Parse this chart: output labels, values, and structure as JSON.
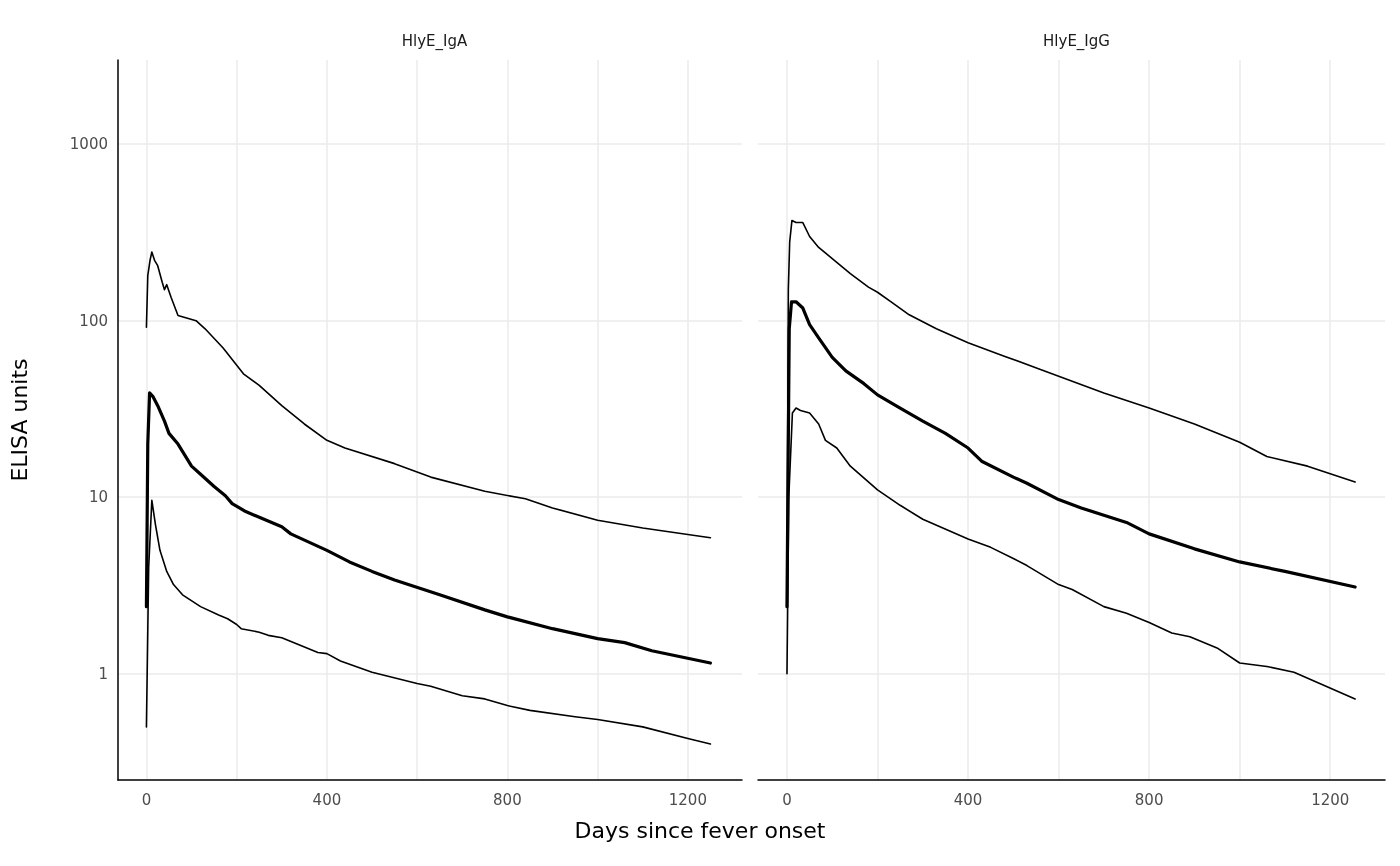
{
  "chart_data": [
    {
      "type": "line",
      "title": "HlyE_IgA",
      "xlabel": "Days since fever onset",
      "ylabel": "ELISA units",
      "log": "y",
      "xlim": [
        -63,
        1320
      ],
      "ylim": [
        0.25,
        3000
      ],
      "xticks": [
        0,
        {
          "value": 200,
          "label": null
        },
        400,
        {
          "value": 600,
          "label": null
        },
        800,
        {
          "value": 1000,
          "label": null
        },
        1200
      ],
      "yticks": [
        1,
        10,
        100,
        1000
      ],
      "grid": true,
      "marker": "none",
      "line_style": "solid",
      "series": [
        {
          "color": "#000000",
          "x": [
            0,
            3,
            8,
            12,
            18,
            25,
            35,
            40,
            45,
            55,
            70,
            110,
            130,
            170,
            215,
            250,
            300,
            350,
            400,
            440,
            550,
            630,
            750,
            840,
            900,
            1000,
            1100,
            1250
          ],
          "values": [
            92,
            180,
            220,
            245,
            220,
            205,
            165,
            150,
            160,
            135,
            107,
            100,
            90,
            70,
            50,
            43,
            33,
            26,
            21,
            19,
            15.5,
            13,
            10.8,
            9.8,
            8.7,
            7.4,
            6.7,
            5.9
          ]
        },
        {
          "color": "#000000",
          "x": [
            0,
            3,
            7,
            15,
            25,
            40,
            50,
            70,
            100,
            120,
            150,
            175,
            190,
            220,
            250,
            300,
            320,
            400,
            450,
            500,
            550,
            650,
            750,
            800,
            900,
            1000,
            1060,
            1120,
            1250
          ],
          "values": [
            2.4,
            20,
            39,
            37,
            33,
            27,
            23,
            20,
            15,
            13.5,
            11.5,
            10.2,
            9.2,
            8.3,
            7.7,
            6.8,
            6.2,
            5,
            4.3,
            3.8,
            3.4,
            2.8,
            2.3,
            2.1,
            1.8,
            1.58,
            1.5,
            1.35,
            1.15
          ]
        },
        {
          "color": "#000000",
          "x": [
            0,
            5,
            12,
            20,
            30,
            45,
            60,
            80,
            120,
            160,
            180,
            200,
            210,
            250,
            270,
            300,
            380,
            400,
            430,
            500,
            600,
            630,
            700,
            750,
            800,
            850,
            950,
            1000,
            1100,
            1200,
            1250
          ],
          "values": [
            0.5,
            4,
            9.6,
            7,
            5,
            3.8,
            3.2,
            2.8,
            2.4,
            2.15,
            2.05,
            1.9,
            1.8,
            1.72,
            1.65,
            1.6,
            1.32,
            1.3,
            1.18,
            1.02,
            0.88,
            0.85,
            0.75,
            0.72,
            0.66,
            0.62,
            0.57,
            0.55,
            0.5,
            0.43,
            0.4
          ]
        }
      ]
    },
    {
      "type": "line",
      "title": "HlyE_IgG",
      "log": "y",
      "tick_labels": "x",
      "xlim": [
        -64,
        1321
      ],
      "ylim": [
        0.25,
        3000
      ],
      "xticks": [
        0,
        {
          "value": 200,
          "label": null
        },
        400,
        {
          "value": 600,
          "label": null
        },
        800,
        {
          "value": 1000,
          "label": null
        },
        1200
      ],
      "yticks": [
        1,
        10,
        100,
        1000
      ],
      "grid": true,
      "marker": "none",
      "line_style": "solid",
      "series": [
        {
          "color": "#000000",
          "x": [
            0,
            3,
            6,
            11,
            20,
            35,
            50,
            70,
            100,
            140,
            180,
            200,
            230,
            270,
            330,
            400,
            480,
            560,
            700,
            800,
            900,
            1000,
            1060,
            1150,
            1255
          ],
          "values": [
            2.4,
            150,
            280,
            370,
            360,
            360,
            300,
            260,
            225,
            185,
            155,
            145,
            128,
            108,
            90,
            75,
            63,
            53,
            39,
            32,
            26,
            20.5,
            17,
            15,
            12.2
          ]
        },
        {
          "color": "#000000",
          "x": [
            0,
            5,
            10,
            20,
            35,
            50,
            70,
            100,
            130,
            170,
            200,
            250,
            300,
            350,
            400,
            430,
            500,
            530,
            600,
            650,
            700,
            750,
            800,
            900,
            1000,
            1100,
            1255
          ],
          "values": [
            2.4,
            90,
            128,
            128,
            118,
            95,
            80,
            62,
            52,
            44,
            38,
            32,
            27,
            23,
            19,
            16,
            13,
            12,
            9.7,
            8.7,
            7.9,
            7.2,
            6.2,
            5.1,
            4.3,
            3.8,
            3.1
          ]
        },
        {
          "color": "#000000",
          "x": [
            0,
            4,
            12,
            20,
            30,
            50,
            70,
            85,
            110,
            140,
            200,
            250,
            300,
            400,
            450,
            500,
            530,
            600,
            630,
            700,
            750,
            800,
            850,
            890,
            950,
            1000,
            1060,
            1120,
            1255
          ],
          "values": [
            1.0,
            10,
            30,
            32,
            31,
            30,
            26,
            21,
            19,
            15,
            11,
            9,
            7.5,
            5.8,
            5.2,
            4.5,
            4.1,
            3.2,
            3.0,
            2.4,
            2.2,
            1.95,
            1.7,
            1.62,
            1.4,
            1.15,
            1.1,
            1.02,
            0.72
          ]
        }
      ]
    }
  ]
}
